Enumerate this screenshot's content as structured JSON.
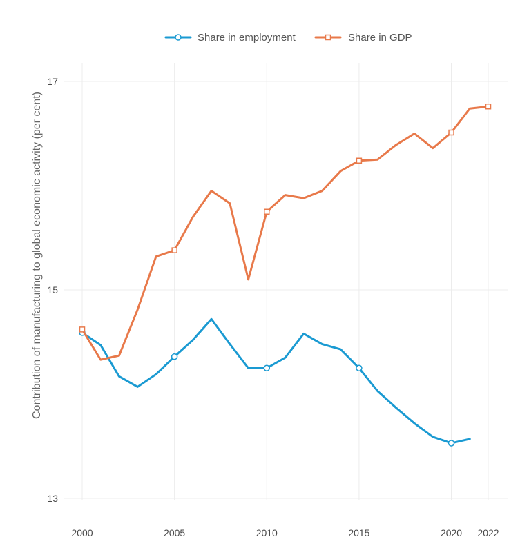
{
  "colors": {
    "employment": "#1a9ad2",
    "gdp": "#e8794a",
    "grid": "#ececec",
    "text": "#4a4a4a"
  },
  "chart_data": {
    "type": "line",
    "title": "",
    "xlabel": "",
    "ylabel": "Contribution of manufacturing to global economic activity (per cent)",
    "xlim": [
      2000,
      2022
    ],
    "ylim": [
      13,
      17
    ],
    "xticks": [
      2000,
      2005,
      2010,
      2015,
      2020,
      2022
    ],
    "yticks": [
      13,
      15,
      17
    ],
    "legend_position": "top-center",
    "grid": true,
    "series": [
      {
        "name": "Share in employment",
        "marker": "circle",
        "color": "#1a9ad2",
        "x": [
          2000,
          2001,
          2002,
          2003,
          2004,
          2005,
          2006,
          2007,
          2008,
          2009,
          2010,
          2011,
          2012,
          2013,
          2014,
          2015,
          2016,
          2017,
          2018,
          2019,
          2020,
          2021
        ],
        "values": [
          14.59,
          14.47,
          14.17,
          14.07,
          14.19,
          14.36,
          14.52,
          14.72,
          14.48,
          14.25,
          14.25,
          14.35,
          14.58,
          14.48,
          14.43,
          14.25,
          14.03,
          13.87,
          13.72,
          13.59,
          13.53,
          13.57
        ],
        "marker_x": [
          2000,
          2005,
          2010,
          2015,
          2020
        ]
      },
      {
        "name": "Share in GDP",
        "marker": "square",
        "color": "#e8794a",
        "x": [
          2000,
          2001,
          2002,
          2003,
          2004,
          2005,
          2006,
          2007,
          2008,
          2009,
          2010,
          2011,
          2012,
          2013,
          2014,
          2015,
          2016,
          2017,
          2018,
          2019,
          2020,
          2021,
          2022
        ],
        "values": [
          14.62,
          14.33,
          14.37,
          14.81,
          15.32,
          15.38,
          15.7,
          15.95,
          15.83,
          15.1,
          15.75,
          15.91,
          15.88,
          15.95,
          16.14,
          16.24,
          16.25,
          16.39,
          16.5,
          16.36,
          16.51,
          16.74,
          16.76
        ],
        "marker_x": [
          2000,
          2005,
          2010,
          2015,
          2020,
          2022
        ]
      }
    ]
  }
}
